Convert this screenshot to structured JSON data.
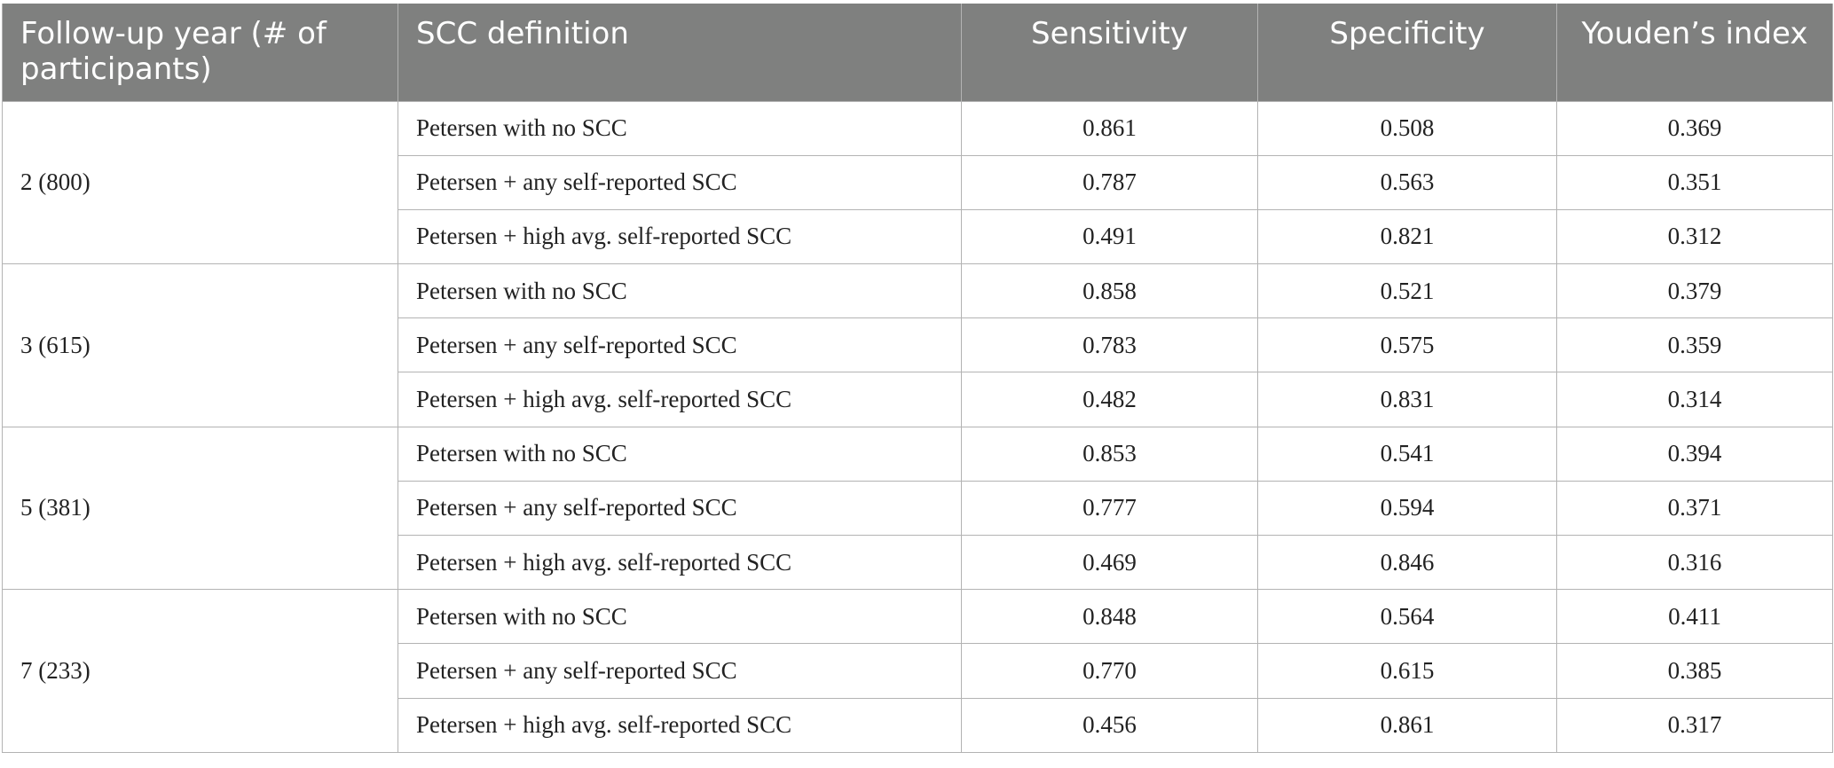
{
  "header": {
    "col_year": "Follow-up year (# of participants)",
    "col_definition": "SCC definition",
    "col_sensitivity": "Sensitivity",
    "col_specificity": "Specificity",
    "col_youden": "Youden’s index"
  },
  "groups": [
    {
      "year": "2 (800)",
      "rows": [
        {
          "definition": "Petersen with no SCC",
          "sensitivity": "0.861",
          "specificity": "0.508",
          "youden": "0.369"
        },
        {
          "definition": "Petersen + any self-reported SCC",
          "sensitivity": "0.787",
          "specificity": "0.563",
          "youden": "0.351"
        },
        {
          "definition": "Petersen + high avg. self-reported SCC",
          "sensitivity": "0.491",
          "specificity": "0.821",
          "youden": "0.312"
        }
      ]
    },
    {
      "year": "3 (615)",
      "rows": [
        {
          "definition": "Petersen with no SCC",
          "sensitivity": "0.858",
          "specificity": "0.521",
          "youden": "0.379"
        },
        {
          "definition": "Petersen + any self-reported SCC",
          "sensitivity": "0.783",
          "specificity": "0.575",
          "youden": "0.359"
        },
        {
          "definition": "Petersen + high avg. self-reported SCC",
          "sensitivity": "0.482",
          "specificity": "0.831",
          "youden": "0.314"
        }
      ]
    },
    {
      "year": "5 (381)",
      "rows": [
        {
          "definition": "Petersen with no SCC",
          "sensitivity": "0.853",
          "specificity": "0.541",
          "youden": "0.394"
        },
        {
          "definition": "Petersen + any self-reported SCC",
          "sensitivity": "0.777",
          "specificity": "0.594",
          "youden": "0.371"
        },
        {
          "definition": "Petersen + high avg. self-reported SCC",
          "sensitivity": "0.469",
          "specificity": "0.846",
          "youden": "0.316"
        }
      ]
    },
    {
      "year": "7 (233)",
      "rows": [
        {
          "definition": "Petersen with no SCC",
          "sensitivity": "0.848",
          "specificity": "0.564",
          "youden": "0.411"
        },
        {
          "definition": "Petersen + any self-reported SCC",
          "sensitivity": "0.770",
          "specificity": "0.615",
          "youden": "0.385"
        },
        {
          "definition": "Petersen + high avg. self-reported SCC",
          "sensitivity": "0.456",
          "specificity": "0.861",
          "youden": "0.317"
        }
      ]
    }
  ]
}
